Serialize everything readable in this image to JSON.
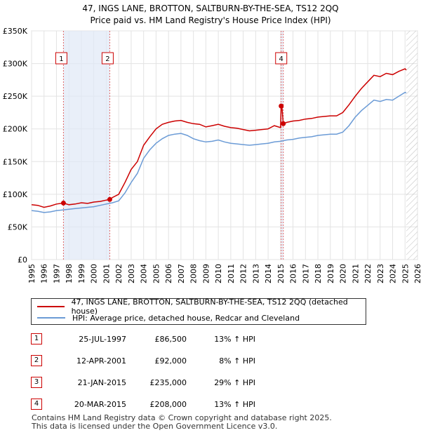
{
  "chart_data": {
    "type": "line",
    "title": "47, INGS LANE, BROTTON, SALTBURN-BY-THE-SEA, TS12 2QQ",
    "subtitle": "Price paid vs. HM Land Registry's House Price Index (HPI)",
    "xlim": [
      1995.0,
      2026.0
    ],
    "ylim": [
      0,
      350000
    ],
    "x_ticks": [
      1995,
      1996,
      1997,
      1998,
      1999,
      2000,
      2001,
      2002,
      2003,
      2004,
      2005,
      2006,
      2007,
      2008,
      2009,
      2010,
      2011,
      2012,
      2013,
      2014,
      2015,
      2016,
      2017,
      2018,
      2019,
      2020,
      2021,
      2022,
      2023,
      2024,
      2025,
      2026
    ],
    "y_ticks": [
      {
        "value": 0,
        "label": "£0"
      },
      {
        "value": 50000,
        "label": "£50K"
      },
      {
        "value": 100000,
        "label": "£100K"
      },
      {
        "value": 150000,
        "label": "£150K"
      },
      {
        "value": 200000,
        "label": "£200K"
      },
      {
        "value": 250000,
        "label": "£250K"
      },
      {
        "value": 300000,
        "label": "£300K"
      },
      {
        "value": 350000,
        "label": "£350K"
      }
    ],
    "grid": true,
    "shaded_ranges": [
      [
        1997.56,
        2001.28
      ],
      [
        2015.05,
        2015.22
      ]
    ],
    "future_hatch_from": 2025.1,
    "series": [
      {
        "name": "47, INGS LANE, BROTTON, SALTBURN-BY-THE-SEA, TS12 2QQ (detached house)",
        "color": "#cc0000",
        "x": [
          1995.0,
          1995.5,
          1996.0,
          1996.5,
          1997.0,
          1997.56,
          1998.0,
          1998.5,
          1999.0,
          1999.5,
          2000.0,
          2000.5,
          2001.0,
          2001.28,
          2001.5,
          2002.0,
          2002.5,
          2003.0,
          2003.5,
          2004.0,
          2004.5,
          2005.0,
          2005.5,
          2006.0,
          2006.5,
          2007.0,
          2007.5,
          2008.0,
          2008.5,
          2009.0,
          2009.5,
          2010.0,
          2010.5,
          2011.0,
          2011.5,
          2012.0,
          2012.5,
          2013.0,
          2013.5,
          2014.0,
          2014.5,
          2015.0,
          2015.05,
          2015.1,
          2015.22,
          2015.5,
          2016.0,
          2016.5,
          2017.0,
          2017.5,
          2018.0,
          2018.5,
          2019.0,
          2019.5,
          2020.0,
          2020.5,
          2021.0,
          2021.5,
          2022.0,
          2022.5,
          2023.0,
          2023.5,
          2024.0,
          2024.5,
          2025.0,
          2025.1
        ],
        "values": [
          84000,
          83000,
          80000,
          82000,
          85000,
          86500,
          84000,
          85000,
          87000,
          86000,
          88000,
          89000,
          91000,
          92000,
          95000,
          100000,
          118000,
          138000,
          150000,
          175000,
          188000,
          200000,
          207000,
          210000,
          212000,
          213000,
          210000,
          208000,
          207000,
          203000,
          205000,
          207000,
          204000,
          202000,
          201000,
          199000,
          197000,
          198000,
          199000,
          200000,
          205000,
          202000,
          235000,
          236000,
          208000,
          210000,
          212000,
          213000,
          215000,
          216000,
          218000,
          219000,
          220000,
          220000,
          225000,
          237000,
          250000,
          262000,
          272000,
          282000,
          280000,
          285000,
          283000,
          288000,
          292000,
          290000
        ]
      },
      {
        "name": "HPI: Average price, detached house, Redcar and Cleveland",
        "color": "#6b9bd6",
        "x": [
          1995.0,
          1995.5,
          1996.0,
          1996.5,
          1997.0,
          1997.5,
          1998.0,
          1998.5,
          1999.0,
          1999.5,
          2000.0,
          2000.5,
          2001.0,
          2001.5,
          2002.0,
          2002.5,
          2003.0,
          2003.5,
          2004.0,
          2004.5,
          2005.0,
          2005.5,
          2006.0,
          2006.5,
          2007.0,
          2007.5,
          2008.0,
          2008.5,
          2009.0,
          2009.5,
          2010.0,
          2010.5,
          2011.0,
          2011.5,
          2012.0,
          2012.5,
          2013.0,
          2013.5,
          2014.0,
          2014.5,
          2015.0,
          2015.5,
          2016.0,
          2016.5,
          2017.0,
          2017.5,
          2018.0,
          2018.5,
          2019.0,
          2019.5,
          2020.0,
          2020.5,
          2021.0,
          2021.5,
          2022.0,
          2022.5,
          2023.0,
          2023.5,
          2024.0,
          2024.5,
          2025.0,
          2025.1
        ],
        "values": [
          75000,
          74000,
          72000,
          73000,
          75000,
          76000,
          77000,
          78000,
          79000,
          80000,
          81000,
          83000,
          85000,
          87000,
          90000,
          102000,
          118000,
          132000,
          155000,
          168000,
          178000,
          185000,
          190000,
          192000,
          193000,
          190000,
          185000,
          182000,
          180000,
          181000,
          183000,
          180000,
          178000,
          177000,
          176000,
          175000,
          176000,
          177000,
          178000,
          180000,
          181000,
          183000,
          184000,
          186000,
          187000,
          188000,
          190000,
          191000,
          192000,
          192000,
          195000,
          205000,
          218000,
          228000,
          236000,
          244000,
          242000,
          245000,
          244000,
          250000,
          256000,
          255000
        ]
      }
    ],
    "sales": [
      {
        "num": "1",
        "x": 1997.56,
        "value": 86500
      },
      {
        "num": "2",
        "x": 2001.28,
        "value": 92000
      },
      {
        "num": "3",
        "x": 2015.05,
        "value": 235000
      },
      {
        "num": "4",
        "x": 2015.22,
        "value": 208000
      }
    ],
    "chart_labels": [
      {
        "num": "1",
        "x": 1997.56
      },
      {
        "num": "2",
        "x": 2001.28
      },
      {
        "num": "4",
        "x": 2015.22
      }
    ]
  },
  "legend": {
    "items": [
      {
        "label": "47, INGS LANE, BROTTON, SALTBURN-BY-THE-SEA, TS12 2QQ (detached house)",
        "color": "#cc0000"
      },
      {
        "label": "HPI: Average price, detached house, Redcar and Cleveland",
        "color": "#6b9bd6"
      }
    ]
  },
  "sales_table": [
    {
      "num": "1",
      "date": "25-JUL-1997",
      "price": "£86,500",
      "hpi": "13% ↑ HPI"
    },
    {
      "num": "2",
      "date": "12-APR-2001",
      "price": "£92,000",
      "hpi": "8% ↑ HPI"
    },
    {
      "num": "3",
      "date": "21-JAN-2015",
      "price": "£235,000",
      "hpi": "29% ↑ HPI"
    },
    {
      "num": "4",
      "date": "20-MAR-2015",
      "price": "£208,000",
      "hpi": "13% ↑ HPI"
    }
  ],
  "footer": {
    "line1": "Contains HM Land Registry data © Crown copyright and database right 2025.",
    "line2": "This data is licensed under the Open Government Licence v3.0."
  }
}
